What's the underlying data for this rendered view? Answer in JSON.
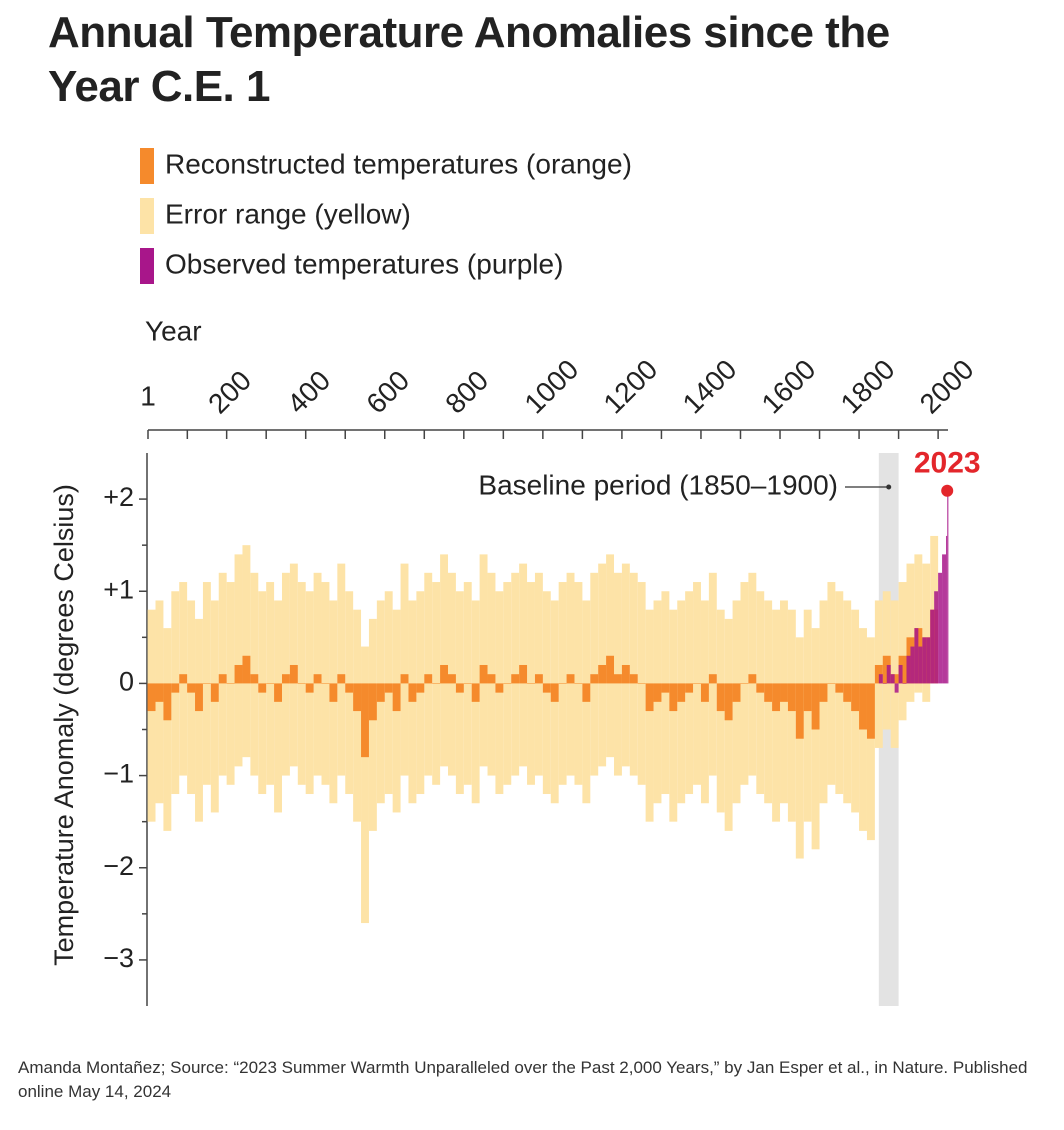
{
  "chart_data": {
    "type": "bar",
    "title": "Annual Temperature Anomalies since the Year C.E. 1",
    "x_label": "Year",
    "y_label": "Temperature Anomaly (degrees Celsius)",
    "source": "Amanda Montañez; Source: “2023 Summer Warmth Unparalleled over the Past 2,000 Years,” by Jan Esper et al., in Nature. Published online May 14, 2024",
    "baseline_label": "Baseline period (1850–1900)",
    "baseline_span": [
      1850,
      1900
    ],
    "xlim": [
      1,
      2025
    ],
    "xticks": [
      1,
      200,
      400,
      600,
      800,
      1000,
      1200,
      1400,
      1600,
      1800,
      2000
    ],
    "ylim": [
      -3.5,
      2.5
    ],
    "yticks": [
      {
        "value": 2,
        "label": "+2"
      },
      {
        "value": 1,
        "label": "+1"
      },
      0,
      {
        "value": -1,
        "label": "−1"
      },
      {
        "value": -2,
        "label": "−2"
      },
      {
        "value": -3,
        "label": "−3"
      }
    ],
    "x": [
      10,
      30,
      50,
      70,
      90,
      110,
      130,
      150,
      170,
      190,
      210,
      230,
      250,
      270,
      290,
      310,
      330,
      350,
      370,
      390,
      410,
      430,
      450,
      470,
      490,
      510,
      530,
      550,
      570,
      590,
      610,
      630,
      650,
      670,
      690,
      710,
      730,
      750,
      770,
      790,
      810,
      830,
      850,
      870,
      890,
      910,
      930,
      950,
      970,
      990,
      1010,
      1030,
      1050,
      1070,
      1090,
      1110,
      1130,
      1150,
      1170,
      1190,
      1210,
      1230,
      1250,
      1270,
      1290,
      1310,
      1330,
      1350,
      1370,
      1390,
      1410,
      1430,
      1450,
      1470,
      1490,
      1510,
      1530,
      1550,
      1570,
      1590,
      1610,
      1630,
      1650,
      1670,
      1690,
      1710,
      1730,
      1750,
      1770,
      1790,
      1810,
      1830,
      1850,
      1870,
      1890,
      1910,
      1930,
      1950,
      1970,
      1990
    ],
    "series": [
      {
        "name": "Reconstructed temperatures (orange)",
        "color": "#f58a2c",
        "values": [
          -0.3,
          -0.2,
          -0.4,
          -0.1,
          0.1,
          -0.1,
          -0.3,
          0.0,
          -0.2,
          0.1,
          0.0,
          0.2,
          0.3,
          0.1,
          -0.1,
          0.0,
          -0.2,
          0.1,
          0.2,
          0.0,
          -0.1,
          0.1,
          0.0,
          -0.2,
          0.1,
          -0.1,
          -0.3,
          -0.8,
          -0.4,
          -0.2,
          -0.1,
          -0.3,
          0.1,
          -0.2,
          -0.1,
          0.1,
          0.0,
          0.2,
          0.1,
          -0.1,
          0.0,
          -0.2,
          0.2,
          0.1,
          -0.1,
          0.0,
          0.1,
          0.2,
          0.0,
          0.1,
          -0.1,
          -0.2,
          0.0,
          0.1,
          0.0,
          -0.2,
          0.1,
          0.2,
          0.3,
          0.1,
          0.2,
          0.1,
          0.0,
          -0.3,
          -0.2,
          -0.1,
          -0.3,
          -0.2,
          -0.1,
          0.0,
          -0.2,
          0.1,
          -0.3,
          -0.4,
          -0.2,
          0.0,
          0.1,
          -0.1,
          -0.2,
          -0.3,
          -0.2,
          -0.3,
          -0.6,
          -0.3,
          -0.5,
          -0.2,
          0.0,
          -0.1,
          -0.2,
          -0.3,
          -0.5,
          -0.6,
          0.2,
          0.3,
          0.1,
          0.3,
          0.5,
          0.6,
          0.5,
          0.8
        ]
      },
      {
        "name": "Error range (yellow)",
        "color": "#fde3a7",
        "low": [
          -1.5,
          -1.3,
          -1.6,
          -1.2,
          -1.0,
          -1.2,
          -1.5,
          -1.1,
          -1.4,
          -1.0,
          -1.1,
          -0.9,
          -0.8,
          -1.0,
          -1.2,
          -1.1,
          -1.4,
          -1.0,
          -0.9,
          -1.1,
          -1.2,
          -1.0,
          -1.1,
          -1.3,
          -1.0,
          -1.2,
          -1.5,
          -2.6,
          -1.6,
          -1.3,
          -1.2,
          -1.4,
          -1.0,
          -1.3,
          -1.2,
          -1.0,
          -1.1,
          -0.9,
          -1.0,
          -1.2,
          -1.1,
          -1.3,
          -0.9,
          -1.0,
          -1.2,
          -1.1,
          -1.0,
          -0.9,
          -1.1,
          -1.0,
          -1.2,
          -1.3,
          -1.1,
          -1.0,
          -1.1,
          -1.3,
          -1.0,
          -0.9,
          -0.8,
          -1.0,
          -0.9,
          -1.0,
          -1.1,
          -1.5,
          -1.3,
          -1.2,
          -1.5,
          -1.3,
          -1.2,
          -1.1,
          -1.3,
          -1.0,
          -1.4,
          -1.6,
          -1.3,
          -1.1,
          -1.0,
          -1.2,
          -1.3,
          -1.5,
          -1.3,
          -1.5,
          -1.9,
          -1.5,
          -1.8,
          -1.3,
          -1.1,
          -1.2,
          -1.3,
          -1.4,
          -1.6,
          -1.7,
          -0.7,
          -0.5,
          -0.7,
          -0.4,
          -0.2,
          -0.1,
          -0.2,
          0.1
        ],
        "high": [
          0.8,
          0.9,
          0.6,
          1.0,
          1.1,
          0.9,
          0.7,
          1.1,
          0.9,
          1.2,
          1.1,
          1.4,
          1.5,
          1.2,
          1.0,
          1.1,
          0.9,
          1.2,
          1.3,
          1.1,
          1.0,
          1.2,
          1.1,
          0.9,
          1.3,
          1.0,
          0.8,
          0.4,
          0.7,
          0.9,
          1.0,
          0.8,
          1.3,
          0.9,
          1.0,
          1.2,
          1.1,
          1.4,
          1.2,
          1.0,
          1.1,
          0.9,
          1.4,
          1.2,
          1.0,
          1.1,
          1.2,
          1.3,
          1.1,
          1.2,
          1.0,
          0.9,
          1.1,
          1.2,
          1.1,
          0.9,
          1.2,
          1.3,
          1.4,
          1.2,
          1.3,
          1.2,
          1.1,
          0.8,
          0.9,
          1.0,
          0.8,
          0.9,
          1.0,
          1.1,
          0.9,
          1.2,
          0.8,
          0.7,
          0.9,
          1.1,
          1.2,
          1.0,
          0.9,
          0.8,
          0.9,
          0.8,
          0.5,
          0.8,
          0.6,
          0.9,
          1.1,
          1.0,
          0.9,
          0.8,
          0.6,
          0.5,
          0.9,
          1.0,
          0.9,
          1.1,
          1.3,
          1.4,
          1.3,
          1.6
        ]
      },
      {
        "name": "Observed temperatures (purple)",
        "color": "#a8168a",
        "x": [
          1850,
          1860,
          1870,
          1880,
          1890,
          1900,
          1910,
          1920,
          1930,
          1940,
          1950,
          1960,
          1970,
          1980,
          1990,
          2000,
          2010,
          2020,
          2023
        ],
        "values": [
          0.1,
          0.0,
          0.2,
          0.1,
          -0.1,
          0.2,
          0.0,
          0.3,
          0.4,
          0.6,
          0.4,
          0.5,
          0.5,
          0.8,
          1.0,
          1.2,
          1.4,
          1.6,
          2.09
        ]
      }
    ],
    "highlight_color": "#e3262b",
    "baseline_color": "#e3e3e3"
  }
}
